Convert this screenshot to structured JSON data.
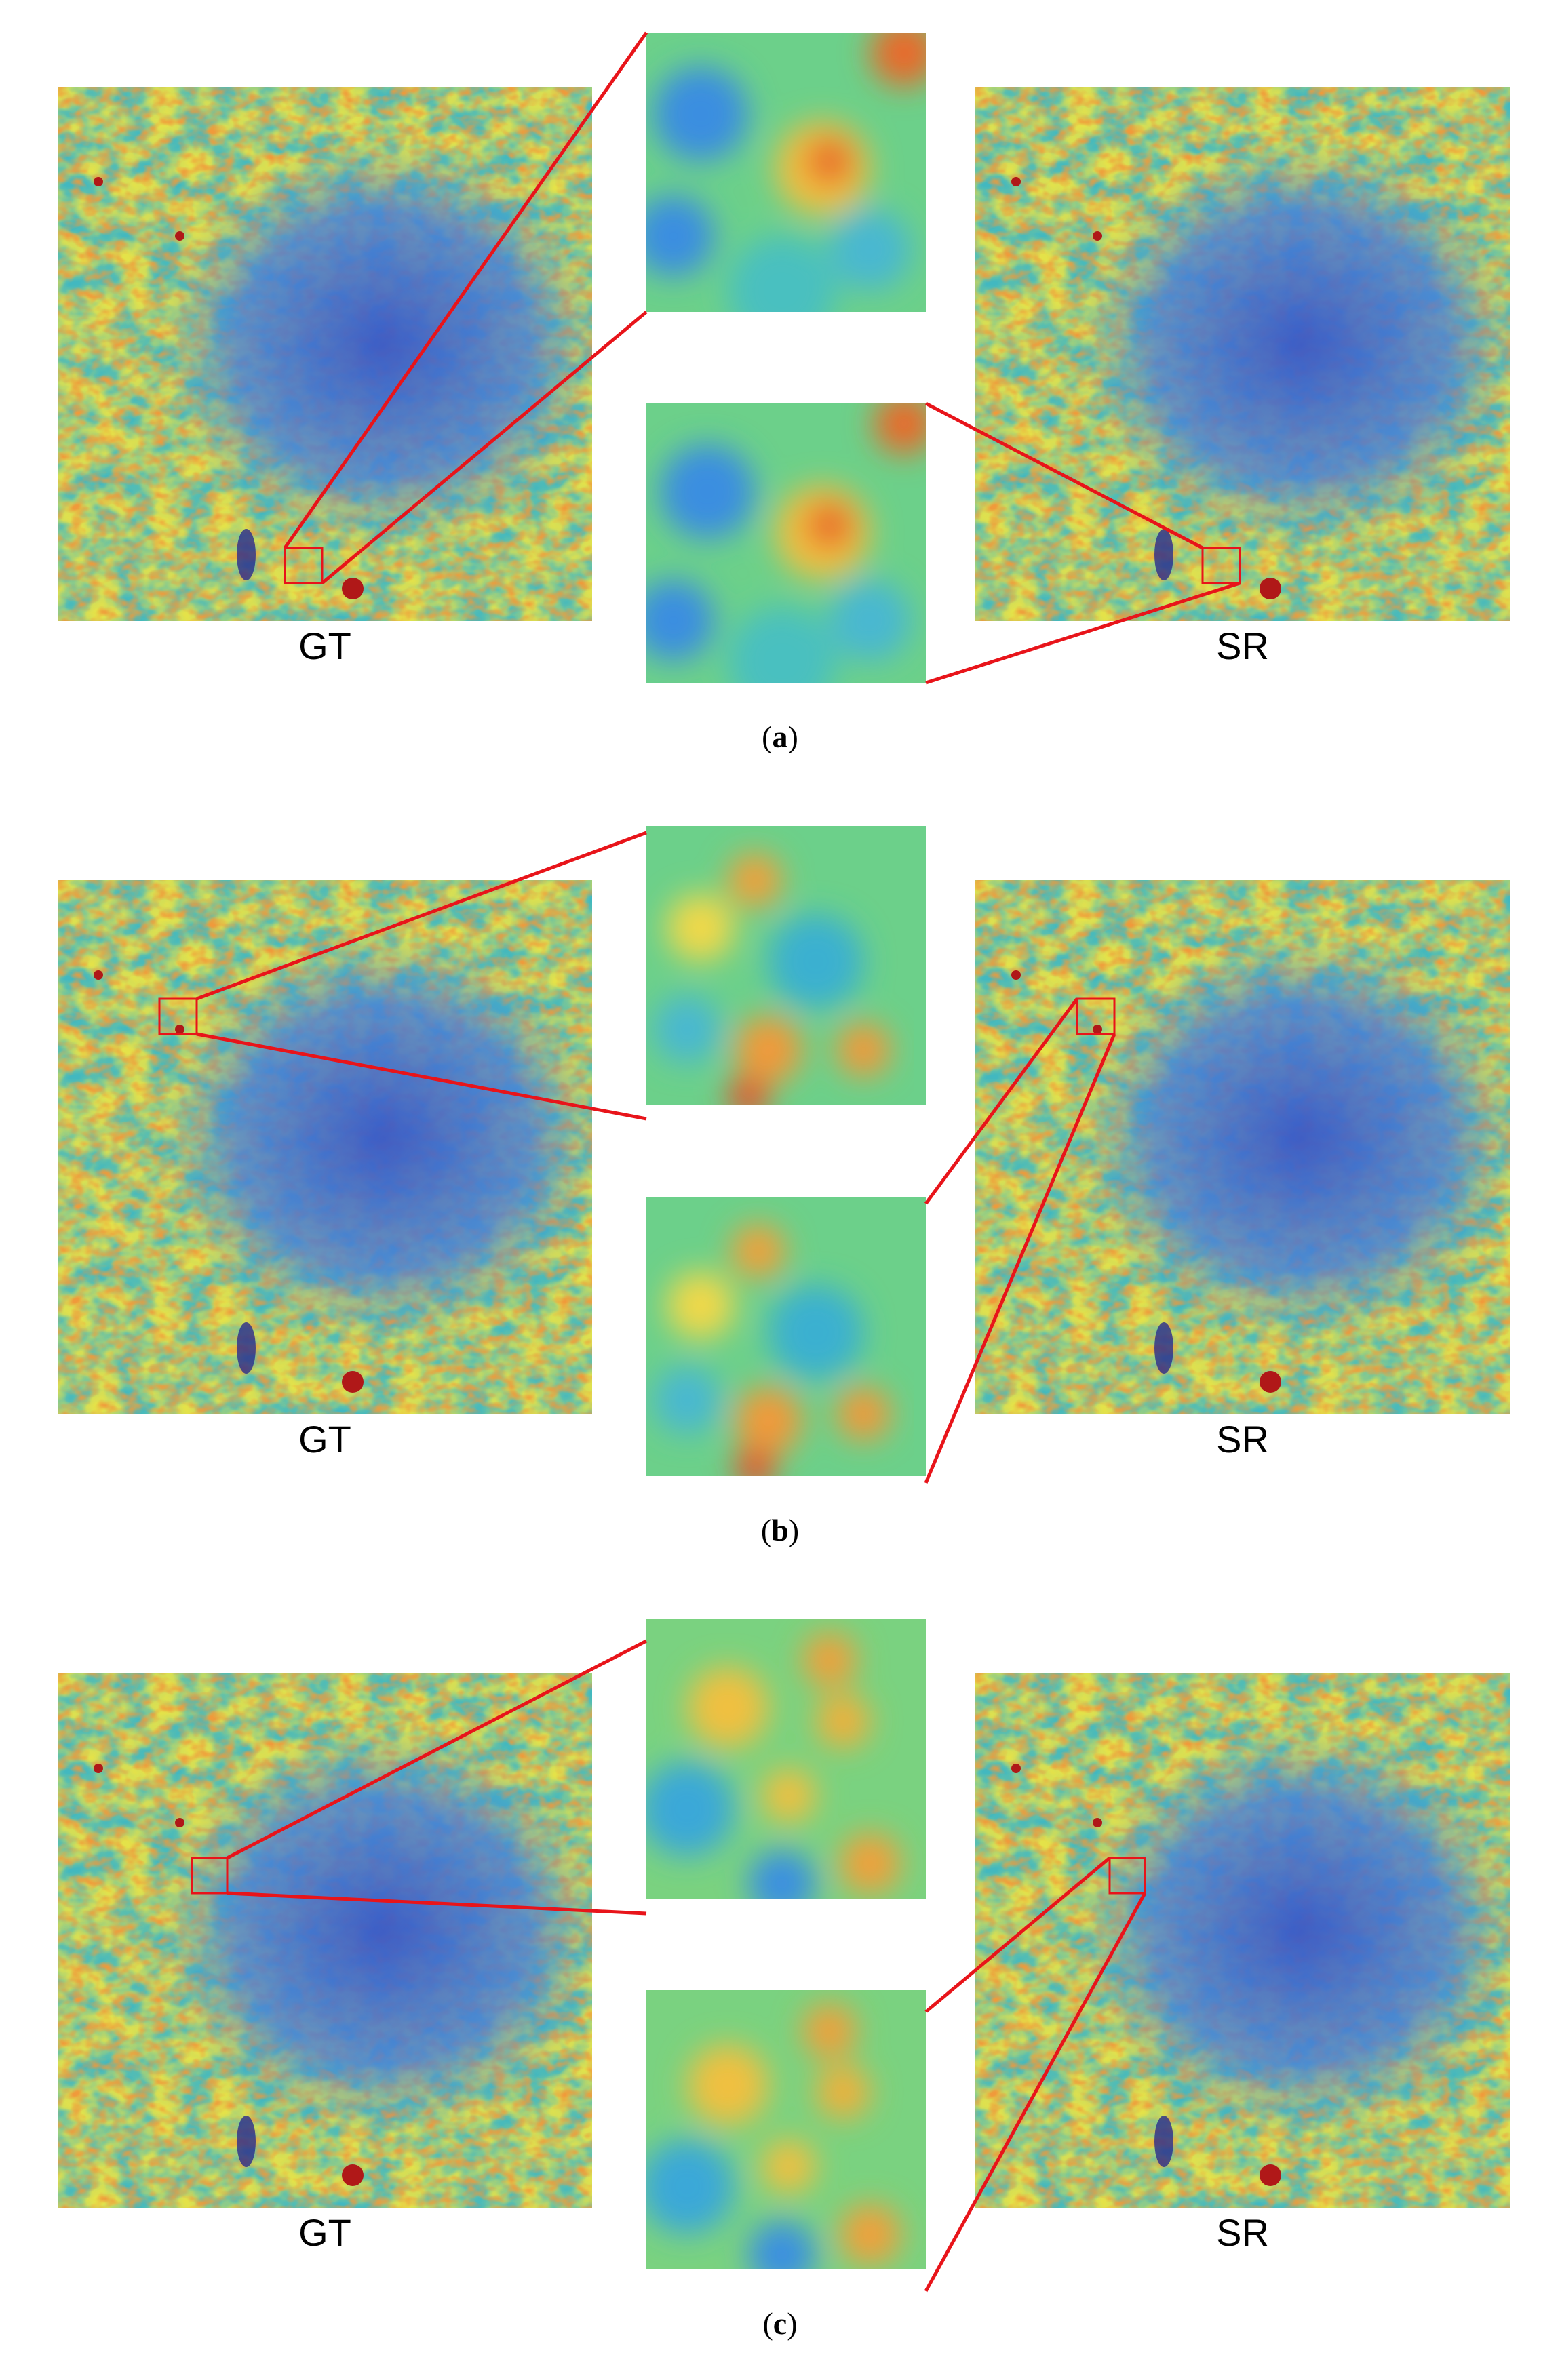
{
  "figures": [
    {
      "label": "a",
      "left_label": "GT",
      "right_label": "SR"
    },
    {
      "label": "b",
      "left_label": "GT",
      "right_label": "SR"
    },
    {
      "label": "c",
      "left_label": "GT",
      "right_label": "SR"
    }
  ],
  "colors": {
    "connector": "#e8141a",
    "colormap": [
      "#2a2a8c",
      "#3a6ed8",
      "#3fa8d8",
      "#45c8b0",
      "#9ad85a",
      "#e8e04a",
      "#f0a03a",
      "#e0402a",
      "#b01818"
    ]
  }
}
